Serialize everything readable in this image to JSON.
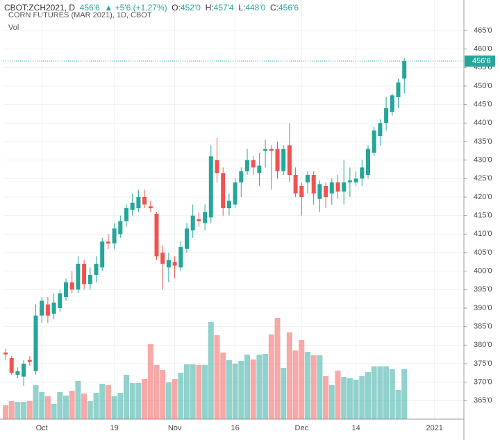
{
  "chart_data": {
    "type": "candlestick",
    "header": {
      "symbol": "CBOT:ZCH2021, D",
      "change": "+5'6 (+1.27%)",
      "fields": [
        {
          "label": "O:",
          "value": "452'0"
        },
        {
          "label": "H:",
          "value": "457'4"
        },
        {
          "label": "L:",
          "value": "448'0"
        },
        {
          "label": "C:",
          "value": "456'6"
        }
      ]
    },
    "title": "CORN FUTURES (MAR 2021), 1D, CBOT",
    "volume_label": "Vol",
    "last_price": {
      "value": 456.75,
      "label": "456'6"
    },
    "up_color": "#26a69a",
    "down_color": "#ef5350",
    "grid": true,
    "categories": [
      null,
      null,
      null,
      null,
      null,
      null,
      "Oct",
      null,
      null,
      null,
      null,
      null,
      null,
      null,
      null,
      null,
      null,
      null,
      "19",
      null,
      null,
      null,
      null,
      null,
      null,
      null,
      null,
      null,
      "Nov",
      null,
      null,
      null,
      null,
      null,
      null,
      null,
      null,
      null,
      "16",
      null,
      null,
      null,
      null,
      null,
      null,
      null,
      null,
      null,
      null,
      "Dec",
      null,
      null,
      null,
      null,
      null,
      null,
      null,
      null,
      "14",
      null,
      null,
      null,
      null,
      null,
      null,
      null,
      null,
      null,
      null,
      null,
      null,
      "2021",
      null,
      null,
      null,
      null
    ],
    "open": [
      378,
      376.5,
      372,
      371.5,
      376,
      373,
      388,
      391,
      388.5,
      390,
      393,
      397,
      395,
      402,
      396.5,
      399,
      401,
      408,
      407.5,
      410,
      413.5,
      416.5,
      417,
      420,
      417.5,
      415.5,
      405,
      401,
      402.5,
      401,
      406,
      411,
      414,
      413,
      414.5,
      430,
      426.5,
      417,
      418,
      424,
      427,
      430,
      426.5,
      432.5,
      433,
      433,
      427,
      434,
      426,
      423,
      424,
      426,
      419.5,
      423,
      421,
      424,
      421.5,
      424,
      424,
      425,
      426,
      432,
      436.5,
      440,
      443,
      447,
      452,
      null,
      null,
      null,
      null,
      null,
      null,
      null,
      null,
      null
    ],
    "high": [
      379,
      377,
      374,
      376,
      377,
      391,
      393,
      393,
      394,
      395,
      398,
      400,
      404,
      403,
      401,
      404,
      409,
      410,
      413,
      415,
      418,
      421,
      422,
      422,
      419,
      416,
      407,
      405,
      404,
      408,
      413,
      418,
      416,
      418,
      434,
      436,
      428,
      421,
      425,
      428,
      433,
      431,
      432,
      435.5,
      434,
      435,
      434,
      440,
      428,
      424,
      427,
      427,
      424.5,
      424,
      425,
      426,
      430,
      428,
      427,
      430,
      434,
      439,
      441,
      447,
      448,
      452,
      457.5,
      null,
      null,
      null,
      null,
      null,
      null,
      null,
      null,
      null
    ],
    "low": [
      376,
      372,
      371,
      369,
      374.5,
      372,
      386,
      386,
      387,
      389,
      392,
      394,
      394,
      395,
      395,
      397,
      400,
      406,
      406,
      409,
      412,
      415,
      416,
      417,
      416,
      403,
      395,
      397,
      398,
      400,
      405,
      409,
      412,
      411,
      413,
      424,
      415,
      415,
      417,
      420,
      426,
      426,
      423,
      428,
      422,
      425,
      426,
      424,
      420,
      415,
      421,
      418,
      416,
      417,
      418,
      419.5,
      418,
      420,
      423,
      423,
      425,
      431,
      434,
      438,
      442,
      444,
      448,
      null,
      null,
      null,
      null,
      null,
      null,
      null,
      null,
      null
    ],
    "close": [
      377.5,
      372.5,
      373,
      375,
      375.5,
      388,
      392,
      388,
      391.5,
      394,
      397,
      395,
      402,
      396.5,
      399,
      402,
      408,
      407.5,
      411.5,
      413.5,
      417,
      418.5,
      420,
      418,
      417,
      404,
      402,
      403,
      401.5,
      406.5,
      411.5,
      415,
      413.5,
      416,
      431,
      426.5,
      417,
      419,
      424,
      427,
      430,
      428,
      428.5,
      433,
      432.5,
      427,
      433,
      426,
      421,
      420,
      426,
      421,
      423.5,
      420,
      424,
      421.5,
      424,
      424.5,
      425,
      428,
      433,
      438,
      440,
      444,
      447.5,
      451,
      456.75,
      null,
      null,
      null,
      null,
      null,
      null,
      null,
      null,
      null
    ],
    "volume": [
      20,
      26,
      25,
      25,
      26,
      49,
      39,
      33,
      22,
      39,
      34,
      41,
      55,
      37,
      26,
      38,
      51,
      49,
      33,
      38,
      64,
      52,
      52,
      58,
      108,
      78,
      71,
      53,
      58,
      67,
      79,
      79,
      78,
      78,
      140,
      121,
      96,
      85,
      80,
      84,
      93,
      86,
      93,
      94,
      122,
      146,
      74,
      125,
      99,
      114,
      97,
      92,
      92,
      62,
      49,
      70,
      61,
      59,
      57,
      62,
      68,
      76,
      76,
      76,
      72,
      42,
      72,
      null,
      null,
      null,
      null,
      null,
      null,
      null,
      null,
      null
    ],
    "ylim": [
      360,
      468
    ],
    "yticks": [
      {
        "value": 365,
        "label": "365'0"
      },
      {
        "value": 370,
        "label": "370'0"
      },
      {
        "value": 375,
        "label": "375'0"
      },
      {
        "value": 380,
        "label": "380'0"
      },
      {
        "value": 385,
        "label": "385'0"
      },
      {
        "value": 390,
        "label": "390'0"
      },
      {
        "value": 395,
        "label": "395'0"
      },
      {
        "value": 400,
        "label": "400'0"
      },
      {
        "value": 405,
        "label": "405'0"
      },
      {
        "value": 410,
        "label": "410'0"
      },
      {
        "value": 415,
        "label": "415'0"
      },
      {
        "value": 420,
        "label": "420'0"
      },
      {
        "value": 425,
        "label": "425'0"
      },
      {
        "value": 430,
        "label": "430'0"
      },
      {
        "value": 435,
        "label": "435'0"
      },
      {
        "value": 440,
        "label": "440'0"
      },
      {
        "value": 445,
        "label": "445'0"
      },
      {
        "value": 450,
        "label": "450'0"
      },
      {
        "value": 455,
        "label": "455'0"
      },
      {
        "value": 460,
        "label": "460'0"
      },
      {
        "value": 465,
        "label": "465'0"
      }
    ]
  }
}
